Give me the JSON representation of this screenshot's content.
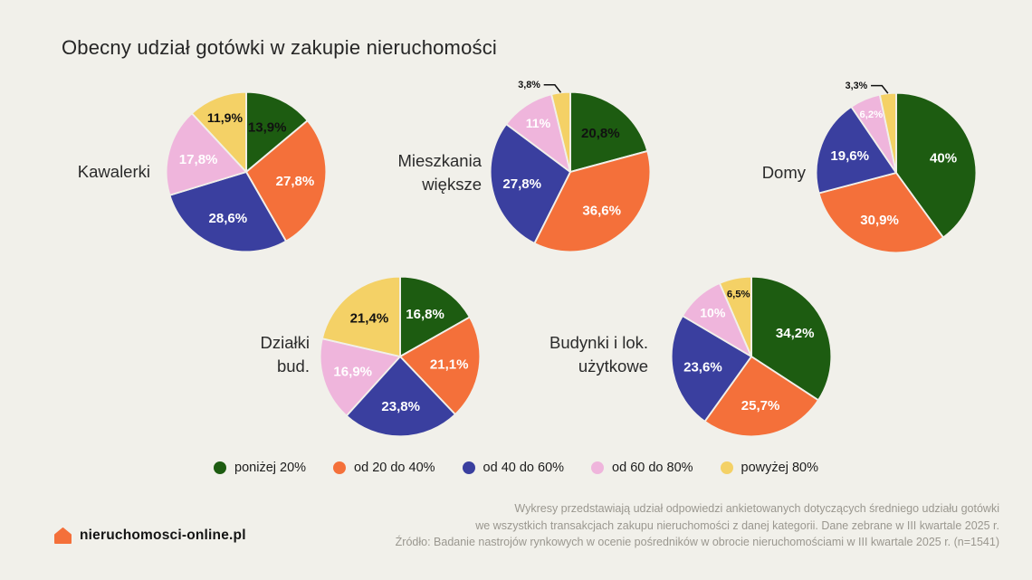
{
  "title": "Obecny udział gotówki w zakupie nieruchomości",
  "colors": {
    "background": "#f1f0ea",
    "palette": {
      "green": "#1d5c11",
      "orange": "#f4703a",
      "blue": "#3a3f9f",
      "pink": "#efb5dc",
      "yellow": "#f4d166"
    },
    "title_text": "#262626",
    "footnote_text": "#9a978f",
    "logo_orange": "#f4703a"
  },
  "legend": [
    {
      "label": "poniżej 20%",
      "color_key": "green"
    },
    {
      "label": "od 20 do 40%",
      "color_key": "orange"
    },
    {
      "label": "od 40 do 60%",
      "color_key": "blue"
    },
    {
      "label": "od 60 do 80%",
      "color_key": "pink"
    },
    {
      "label": "powyżej 80%",
      "color_key": "yellow"
    }
  ],
  "chart_data": [
    {
      "type": "pie",
      "name": "Kawalerki",
      "display_label": "Kawalerki",
      "slices": [
        {
          "category": "poniżej 20%",
          "value": 13.9,
          "label": "13,9%",
          "color_key": "green",
          "text_color": "#111111"
        },
        {
          "category": "od 20 do 40%",
          "value": 27.8,
          "label": "27,8%",
          "color_key": "orange",
          "text_color": "#ffffff"
        },
        {
          "category": "od 40 do 60%",
          "value": 28.6,
          "label": "28,6%",
          "color_key": "blue",
          "text_color": "#ffffff"
        },
        {
          "category": "od 60 do 80%",
          "value": 17.8,
          "label": "17,8%",
          "color_key": "pink",
          "text_color": "#ffffff"
        },
        {
          "category": "powyżej 80%",
          "value": 11.9,
          "label": "11,9%",
          "color_key": "yellow",
          "text_color": "#111111"
        }
      ]
    },
    {
      "type": "pie",
      "name": "Mieszkania większe",
      "display_label": "Mieszkania\nwiększe",
      "slices": [
        {
          "category": "poniżej 20%",
          "value": 20.8,
          "label": "20,8%",
          "color_key": "green",
          "text_color": "#111111"
        },
        {
          "category": "od 20 do 40%",
          "value": 36.6,
          "label": "36,6%",
          "color_key": "orange",
          "text_color": "#ffffff"
        },
        {
          "category": "od 40 do 60%",
          "value": 27.8,
          "label": "27,8%",
          "color_key": "blue",
          "text_color": "#ffffff"
        },
        {
          "category": "od 60 do 80%",
          "value": 11.0,
          "label": "11%",
          "color_key": "pink",
          "text_color": "#ffffff"
        },
        {
          "category": "powyżej 80%",
          "value": 3.8,
          "label": "3,8%",
          "color_key": "yellow",
          "text_color": "#111111"
        }
      ]
    },
    {
      "type": "pie",
      "name": "Domy",
      "display_label": "Domy",
      "slices": [
        {
          "category": "poniżej 20%",
          "value": 40.0,
          "label": "40%",
          "color_key": "green",
          "text_color": "#ffffff"
        },
        {
          "category": "od 20 do 40%",
          "value": 30.9,
          "label": "30,9%",
          "color_key": "orange",
          "text_color": "#ffffff"
        },
        {
          "category": "od 40 do 60%",
          "value": 19.6,
          "label": "19,6%",
          "color_key": "blue",
          "text_color": "#ffffff"
        },
        {
          "category": "od 60 do 80%",
          "value": 6.2,
          "label": "6,2%",
          "color_key": "pink",
          "text_color": "#ffffff"
        },
        {
          "category": "powyżej 80%",
          "value": 3.3,
          "label": "3,3%",
          "color_key": "yellow",
          "text_color": "#111111"
        }
      ]
    },
    {
      "type": "pie",
      "name": "Działki bud.",
      "display_label": "Działki\nbud.",
      "slices": [
        {
          "category": "poniżej 20%",
          "value": 16.8,
          "label": "16,8%",
          "color_key": "green",
          "text_color": "#ffffff"
        },
        {
          "category": "od 20 do 40%",
          "value": 21.1,
          "label": "21,1%",
          "color_key": "orange",
          "text_color": "#ffffff"
        },
        {
          "category": "od 40 do 60%",
          "value": 23.8,
          "label": "23,8%",
          "color_key": "blue",
          "text_color": "#ffffff"
        },
        {
          "category": "od 60 do 80%",
          "value": 16.9,
          "label": "16,9%",
          "color_key": "pink",
          "text_color": "#ffffff"
        },
        {
          "category": "powyżej 80%",
          "value": 21.4,
          "label": "21,4%",
          "color_key": "yellow",
          "text_color": "#111111"
        }
      ]
    },
    {
      "type": "pie",
      "name": "Budynki i lok. użytkowe",
      "display_label": "Budynki i lok.\nużytkowe",
      "slices": [
        {
          "category": "poniżej 20%",
          "value": 34.2,
          "label": "34,2%",
          "color_key": "green",
          "text_color": "#ffffff"
        },
        {
          "category": "od 20 do 40%",
          "value": 25.7,
          "label": "25,7%",
          "color_key": "orange",
          "text_color": "#ffffff"
        },
        {
          "category": "od 40 do 60%",
          "value": 23.6,
          "label": "23,6%",
          "color_key": "blue",
          "text_color": "#ffffff"
        },
        {
          "category": "od 60 do 80%",
          "value": 10.0,
          "label": "10%",
          "color_key": "pink",
          "text_color": "#ffffff"
        },
        {
          "category": "powyżej 80%",
          "value": 6.5,
          "label": "6,5%",
          "color_key": "yellow",
          "text_color": "#111111"
        }
      ]
    }
  ],
  "footnote_lines": [
    "Wykresy przedstawiają udział odpowiedzi ankietowanych dotyczących średniego udziału gotówki",
    "we wszystkich transakcjach zakupu nieruchomości z danej kategorii. Dane zebrane w III kwartale 2025 r.",
    "Źródło: Badanie nastrojów rynkowych w ocenie pośredników w obrocie nieruchomościami w III kwartale 2025 r. (n=1541)"
  ],
  "logo": {
    "text": "nieruchomosci-online.pl"
  }
}
